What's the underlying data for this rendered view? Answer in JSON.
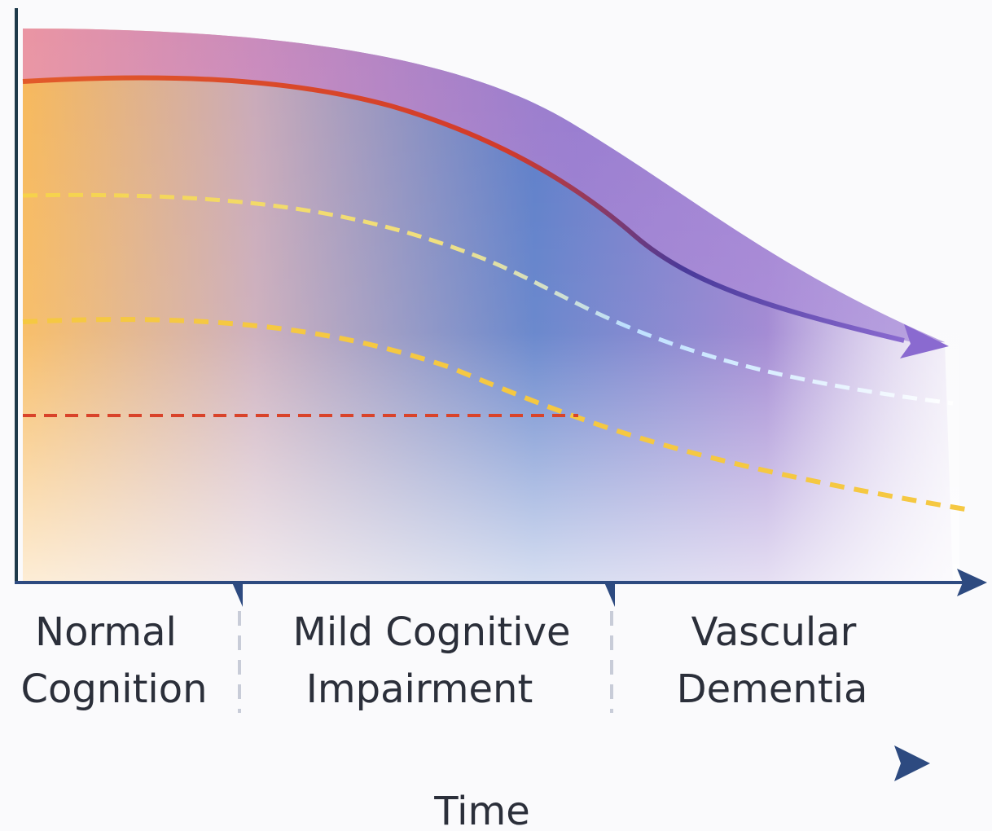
{
  "stages": [
    {
      "lines": [
        "Normal",
        "Cognition"
      ]
    },
    {
      "lines": [
        "Mild Cognitive",
        "Impairment"
      ]
    },
    {
      "lines": [
        "Vascular",
        "Dementia"
      ]
    }
  ],
  "axis_label": "Time"
}
